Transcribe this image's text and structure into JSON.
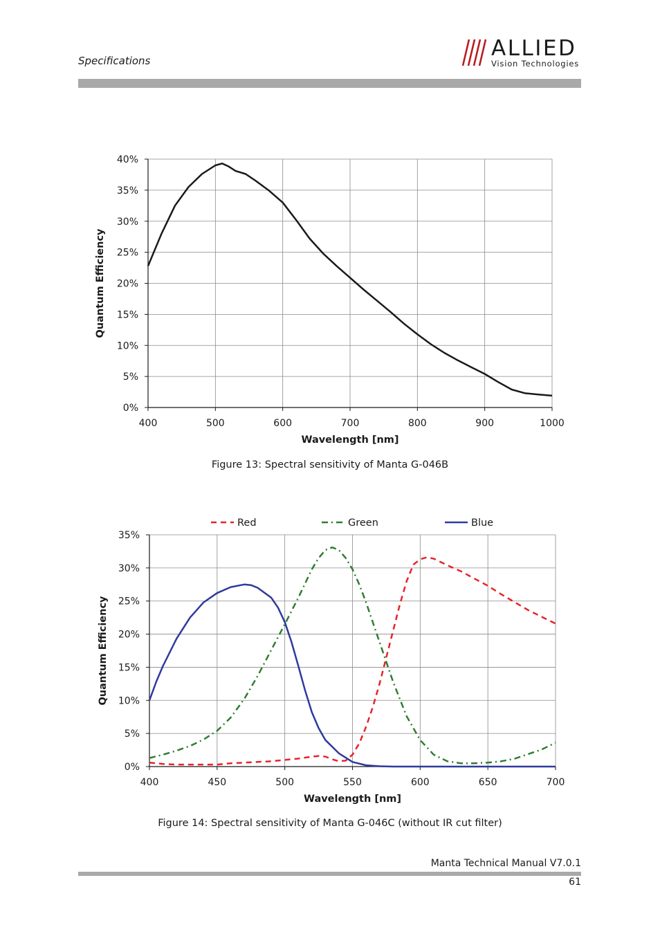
{
  "header": {
    "section": "Specifications",
    "logo": {
      "brand": "ALLIED",
      "tagline": "Vision Technologies"
    }
  },
  "figures": [
    {
      "caption": "Figure 13: Spectral sensitivity of Manta G-046B"
    },
    {
      "caption": "Figure 14: Spectral sensitivity of Manta G-046C (without IR cut filter)"
    }
  ],
  "footer": {
    "manual": "Manta Technical Manual V7.0.1",
    "page": "61"
  },
  "chart_data": [
    {
      "type": "line",
      "title": "",
      "xlabel": "Wavelength [nm]",
      "ylabel": "Quantum Efficiency",
      "xlim": [
        400,
        1000
      ],
      "ylim": [
        0,
        40
      ],
      "xticks": [
        400,
        500,
        600,
        700,
        800,
        900,
        1000
      ],
      "yticks": [
        0,
        5,
        10,
        15,
        20,
        25,
        30,
        35,
        40
      ],
      "y_unit": "%",
      "grid": true,
      "legend": "none",
      "series": [
        {
          "color": "#1a1a1a",
          "dash": "solid",
          "x": [
            400,
            420,
            440,
            460,
            480,
            500,
            510,
            520,
            530,
            545,
            560,
            580,
            600,
            620,
            640,
            660,
            680,
            700,
            720,
            740,
            760,
            780,
            800,
            820,
            840,
            860,
            880,
            900,
            920,
            940,
            960,
            980,
            1000
          ],
          "y": [
            22.8,
            28.0,
            32.5,
            35.5,
            37.6,
            39.0,
            39.3,
            38.8,
            38.1,
            37.6,
            36.5,
            34.9,
            33.0,
            30.2,
            27.2,
            24.8,
            22.8,
            20.9,
            19.0,
            17.2,
            15.4,
            13.5,
            11.8,
            10.2,
            8.8,
            7.6,
            6.5,
            5.4,
            4.1,
            2.9,
            2.3,
            2.1,
            1.9
          ]
        }
      ]
    },
    {
      "type": "line",
      "title": "",
      "xlabel": "Wavelength [nm]",
      "ylabel": "Quantum Efficiency",
      "xlim": [
        400,
        700
      ],
      "ylim": [
        0,
        35
      ],
      "xticks": [
        400,
        450,
        500,
        550,
        600,
        650,
        700
      ],
      "yticks": [
        0,
        5,
        10,
        15,
        20,
        25,
        30,
        35
      ],
      "y_unit": "%",
      "grid": true,
      "legend": "top",
      "series": [
        {
          "name": "Red",
          "color": "#e8222a",
          "dash": "dashed",
          "x": [
            400,
            410,
            420,
            430,
            440,
            450,
            460,
            470,
            480,
            490,
            500,
            510,
            520,
            525,
            530,
            535,
            540,
            545,
            550,
            555,
            560,
            565,
            570,
            575,
            580,
            585,
            590,
            595,
            600,
            605,
            610,
            615,
            620,
            630,
            640,
            650,
            660,
            670,
            680,
            690,
            700
          ],
          "y": [
            0.6,
            0.4,
            0.3,
            0.3,
            0.3,
            0.3,
            0.5,
            0.6,
            0.7,
            0.8,
            1.0,
            1.2,
            1.5,
            1.6,
            1.5,
            1.1,
            0.8,
            0.9,
            1.8,
            3.5,
            6.0,
            9.0,
            12.5,
            16.5,
            20.5,
            24.5,
            28.0,
            30.5,
            31.3,
            31.6,
            31.4,
            30.9,
            30.4,
            29.5,
            28.4,
            27.3,
            26.0,
            24.8,
            23.6,
            22.6,
            21.6
          ]
        },
        {
          "name": "Green",
          "color": "#2e7d32",
          "dash": "dashdot",
          "x": [
            400,
            410,
            420,
            430,
            440,
            450,
            460,
            470,
            480,
            490,
            500,
            510,
            520,
            525,
            530,
            535,
            540,
            545,
            550,
            555,
            560,
            570,
            580,
            590,
            600,
            610,
            620,
            630,
            640,
            650,
            660,
            670,
            680,
            690,
            700
          ],
          "y": [
            1.3,
            1.8,
            2.4,
            3.1,
            4.1,
            5.4,
            7.4,
            10.2,
            13.7,
            17.6,
            21.5,
            25.5,
            29.8,
            31.5,
            32.7,
            33.1,
            32.7,
            31.5,
            29.8,
            27.5,
            24.8,
            18.8,
            12.8,
            7.6,
            4.0,
            1.8,
            0.8,
            0.5,
            0.5,
            0.6,
            0.8,
            1.2,
            1.9,
            2.6,
            3.6
          ]
        },
        {
          "name": "Blue",
          "color": "#2e3a9c",
          "dash": "solid",
          "x": [
            400,
            405,
            410,
            420,
            430,
            440,
            450,
            460,
            470,
            475,
            480,
            490,
            495,
            500,
            505,
            510,
            515,
            520,
            525,
            530,
            540,
            550,
            560,
            570,
            580,
            600,
            650,
            700
          ],
          "y": [
            10.0,
            12.8,
            15.2,
            19.3,
            22.5,
            24.8,
            26.2,
            27.1,
            27.5,
            27.4,
            27.0,
            25.5,
            24.0,
            21.8,
            18.8,
            15.2,
            11.5,
            8.2,
            5.8,
            4.0,
            2.0,
            0.7,
            0.2,
            0.05,
            0.0,
            0.0,
            0.0,
            0.0
          ]
        }
      ]
    }
  ]
}
